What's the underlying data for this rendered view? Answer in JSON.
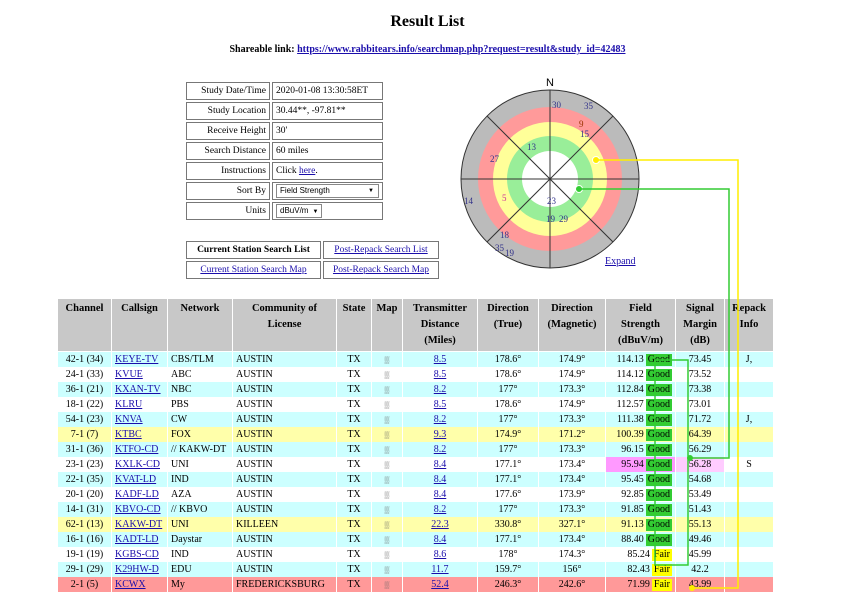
{
  "page": {
    "title": "Result List",
    "share_label": "Shareable link:",
    "share_url": "https://www.rabbitears.info/searchmap.php?request=result&study_id=42483"
  },
  "info": {
    "study_datetime_label": "Study Date/Time",
    "study_datetime": "2020-01-08 13:30:58ET",
    "study_location_label": "Study Location",
    "study_location": "30.44**, -97.81**",
    "receive_height_label": "Receive Height",
    "receive_height": "30'",
    "search_distance_label": "Search Distance",
    "search_distance": "60 miles",
    "instructions_label": "Instructions",
    "instructions_prefix": "Click ",
    "instructions_link": "here",
    "instructions_suffix": ".",
    "sort_label": "Sort By",
    "sort_value": "Field Strength",
    "units_label": "Units",
    "units_value": "dBuV/m"
  },
  "links": {
    "current_list": "Current Station Search List",
    "post_repack_list": "Post-Repack Search List",
    "current_map": "Current Station Search Map",
    "post_repack_map": "Post-Repack Search Map"
  },
  "radar": {
    "north": "N",
    "expand": "Expand",
    "labels": [
      "30",
      "35",
      "9",
      "15",
      "13",
      "27",
      "5",
      "14",
      "23",
      "19",
      "29",
      "18",
      "35",
      "19"
    ]
  },
  "table": {
    "headers": [
      "Channel",
      "Callsign",
      "Network",
      "Community of License",
      "State",
      "Map",
      "Transmitter Distance (Miles)",
      "Direction (True)",
      "Direction (Magnetic)",
      "Field Strength (dBuV/m)",
      "Signal Margin (dB)",
      "Repack Info"
    ],
    "rows": [
      {
        "channel": "42-1 (34)",
        "callsign": "KEYE-TV",
        "network": "CBS/TLM",
        "community": "AUSTIN",
        "state": "TX",
        "distance": "8.5",
        "dir_true": "178.6°",
        "dir_mag": "174.9°",
        "field": "114.13",
        "rating": "Good",
        "margin": "73.45",
        "repack": "J,",
        "color": "c"
      },
      {
        "channel": "24-1 (33)",
        "callsign": "KVUE",
        "network": "ABC",
        "community": "AUSTIN",
        "state": "TX",
        "distance": "8.5",
        "dir_true": "178.6°",
        "dir_mag": "174.9°",
        "field": "114.12",
        "rating": "Good",
        "margin": "73.52",
        "repack": "",
        "color": "w"
      },
      {
        "channel": "36-1 (21)",
        "callsign": "KXAN-TV",
        "network": "NBC",
        "community": "AUSTIN",
        "state": "TX",
        "distance": "8.2",
        "dir_true": "177°",
        "dir_mag": "173.3°",
        "field": "112.84",
        "rating": "Good",
        "margin": "73.38",
        "repack": "",
        "color": "c"
      },
      {
        "channel": "18-1 (22)",
        "callsign": "KLRU",
        "network": "PBS",
        "community": "AUSTIN",
        "state": "TX",
        "distance": "8.5",
        "dir_true": "178.6°",
        "dir_mag": "174.9°",
        "field": "112.57",
        "rating": "Good",
        "margin": "73.01",
        "repack": "",
        "color": "w"
      },
      {
        "channel": "54-1 (23)",
        "callsign": "KNVA",
        "network": "CW",
        "community": "AUSTIN",
        "state": "TX",
        "distance": "8.2",
        "dir_true": "177°",
        "dir_mag": "173.3°",
        "field": "111.38",
        "rating": "Good",
        "margin": "71.72",
        "repack": "J,",
        "color": "c"
      },
      {
        "channel": "7-1 (7)",
        "callsign": "KTBC",
        "network": "FOX",
        "community": "AUSTIN",
        "state": "TX",
        "distance": "9.3",
        "dir_true": "174.9°",
        "dir_mag": "171.2°",
        "field": "100.39",
        "rating": "Good",
        "margin": "64.39",
        "repack": "",
        "color": "y"
      },
      {
        "channel": "31-1 (36)",
        "callsign": "KTFO-CD",
        "network": "// KAKW-DT",
        "community": "AUSTIN",
        "state": "TX",
        "distance": "8.2",
        "dir_true": "177°",
        "dir_mag": "173.3°",
        "field": "96.15",
        "rating": "Good",
        "margin": "56.29",
        "repack": "",
        "color": "c"
      },
      {
        "channel": "23-1 (23)",
        "callsign": "KXLK-CD",
        "network": "UNI",
        "community": "AUSTIN",
        "state": "TX",
        "distance": "8.4",
        "dir_true": "177.1°",
        "dir_mag": "173.4°",
        "field": "95.94",
        "rating": "Good",
        "margin": "56.28",
        "repack": "S",
        "color": "w",
        "pink": true
      },
      {
        "channel": "22-1 (35)",
        "callsign": "KVAT-LD",
        "network": "IND",
        "community": "AUSTIN",
        "state": "TX",
        "distance": "8.4",
        "dir_true": "177.1°",
        "dir_mag": "173.4°",
        "field": "95.45",
        "rating": "Good",
        "margin": "54.68",
        "repack": "",
        "color": "c"
      },
      {
        "channel": "20-1 (20)",
        "callsign": "KADF-LD",
        "network": "AZA",
        "community": "AUSTIN",
        "state": "TX",
        "distance": "8.4",
        "dir_true": "177.6°",
        "dir_mag": "173.9°",
        "field": "92.85",
        "rating": "Good",
        "margin": "53.49",
        "repack": "",
        "color": "w"
      },
      {
        "channel": "14-1 (31)",
        "callsign": "KBVO-CD",
        "network": "// KBVO",
        "community": "AUSTIN",
        "state": "TX",
        "distance": "8.2",
        "dir_true": "177°",
        "dir_mag": "173.3°",
        "field": "91.85",
        "rating": "Good",
        "margin": "51.43",
        "repack": "",
        "color": "c"
      },
      {
        "channel": "62-1 (13)",
        "callsign": "KAKW-DT",
        "network": "UNI",
        "community": "KILLEEN",
        "state": "TX",
        "distance": "22.3",
        "dir_true": "330.8°",
        "dir_mag": "327.1°",
        "field": "91.13",
        "rating": "Good",
        "margin": "55.13",
        "repack": "",
        "color": "y"
      },
      {
        "channel": "16-1 (16)",
        "callsign": "KADT-LD",
        "network": "Daystar",
        "community": "AUSTIN",
        "state": "TX",
        "distance": "8.4",
        "dir_true": "177.1°",
        "dir_mag": "173.4°",
        "field": "88.40",
        "rating": "Good",
        "margin": "49.46",
        "repack": "",
        "color": "c"
      },
      {
        "channel": "19-1 (19)",
        "callsign": "KGBS-CD",
        "network": "IND",
        "community": "AUSTIN",
        "state": "TX",
        "distance": "8.6",
        "dir_true": "178°",
        "dir_mag": "174.3°",
        "field": "85.24",
        "rating": "Fair",
        "margin": "45.99",
        "repack": "",
        "color": "w"
      },
      {
        "channel": "29-1 (29)",
        "callsign": "K29HW-D",
        "network": "EDU",
        "community": "AUSTIN",
        "state": "TX",
        "distance": "11.7",
        "dir_true": "159.7°",
        "dir_mag": "156°",
        "field": "82.43",
        "rating": "Fair",
        "margin": "42.2",
        "repack": "",
        "color": "c"
      },
      {
        "channel": "2-1 (5)",
        "callsign": "KCWX",
        "network": "My",
        "community": "FREDERICKSBURG",
        "state": "TX",
        "distance": "52.4",
        "dir_true": "246.3°",
        "dir_mag": "242.6°",
        "field": "71.99",
        "rating": "Fair",
        "margin": "43.99",
        "repack": "",
        "color": "r"
      }
    ]
  }
}
